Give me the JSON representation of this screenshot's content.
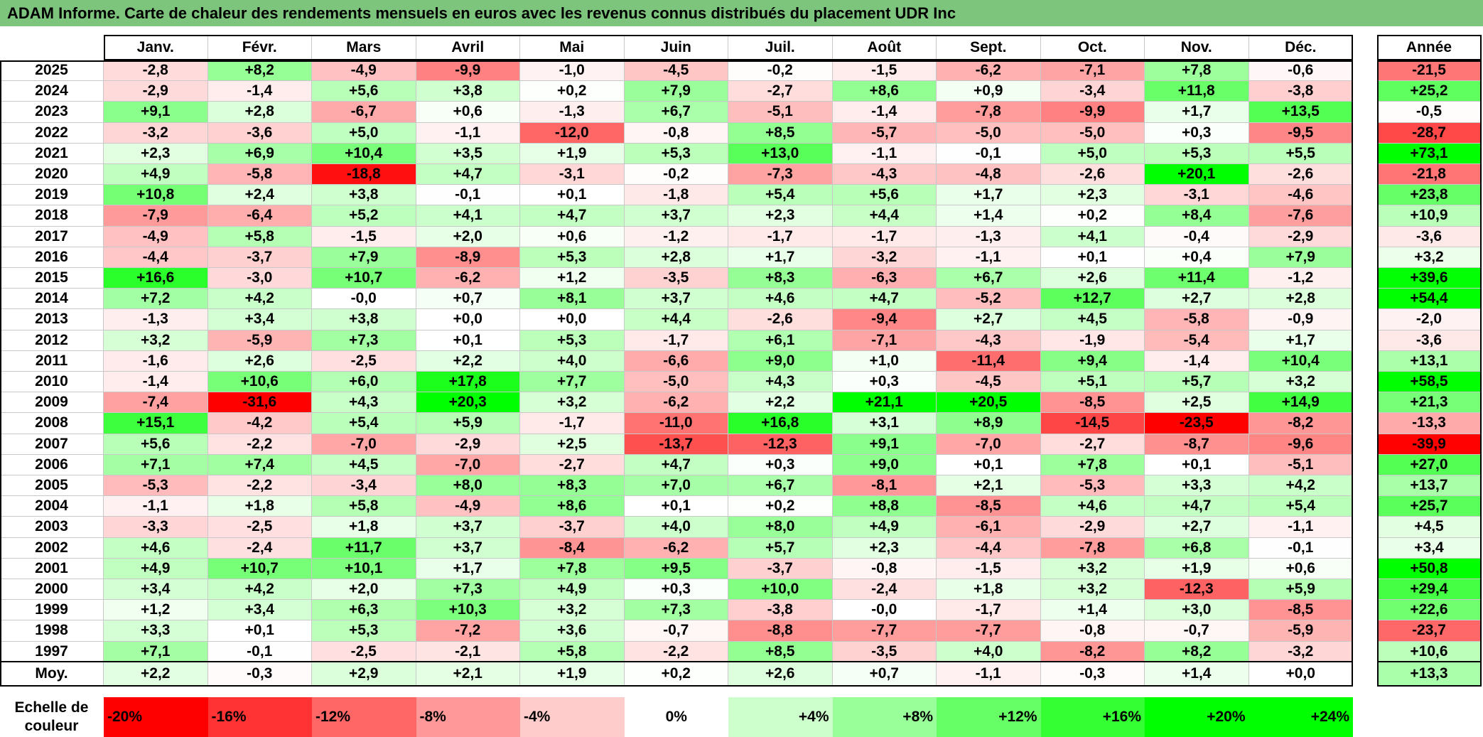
{
  "title": "ADAM Informe. Carte de chaleur des rendements mensuels en euros avec les revenus connus distribués du placement UDR Inc",
  "chart_data": {
    "type": "heatmap",
    "columns": [
      "Janv.",
      "Févr.",
      "Mars",
      "Avril",
      "Mai",
      "Juin",
      "Juil.",
      "Août",
      "Sept.",
      "Oct.",
      "Nov.",
      "Déc."
    ],
    "annual_header": "Année",
    "rows": [
      {
        "year": "2025",
        "values": [
          "-2,8",
          "+8,2",
          "-4,9",
          "-9,9",
          "-1,0",
          "-4,5",
          "-0,2",
          "-1,5",
          "-6,2",
          "-7,1",
          "+7,8",
          "-0,6"
        ],
        "annual": "-21,5"
      },
      {
        "year": "2024",
        "values": [
          "-2,9",
          "-1,4",
          "+5,6",
          "+3,8",
          "+0,2",
          "+7,9",
          "-2,7",
          "+8,6",
          "+0,9",
          "-3,4",
          "+11,8",
          "-3,8"
        ],
        "annual": "+25,2"
      },
      {
        "year": "2023",
        "values": [
          "+9,1",
          "+2,8",
          "-6,7",
          "+0,6",
          "-1,3",
          "+6,7",
          "-5,1",
          "-1,4",
          "-7,8",
          "-9,9",
          "+1,7",
          "+13,5"
        ],
        "annual": "-0,5"
      },
      {
        "year": "2022",
        "values": [
          "-3,2",
          "-3,6",
          "+5,0",
          "-1,1",
          "-12,0",
          "-0,8",
          "+8,5",
          "-5,7",
          "-5,0",
          "-5,0",
          "+0,3",
          "-9,5"
        ],
        "annual": "-28,7"
      },
      {
        "year": "2021",
        "values": [
          "+2,3",
          "+6,9",
          "+10,4",
          "+3,5",
          "+1,9",
          "+5,3",
          "+13,0",
          "-1,1",
          "-0,1",
          "+5,0",
          "+5,3",
          "+5,5"
        ],
        "annual": "+73,1"
      },
      {
        "year": "2020",
        "values": [
          "+4,9",
          "-5,8",
          "-18,8",
          "+4,7",
          "-3,1",
          "-0,2",
          "-7,3",
          "-4,3",
          "-4,8",
          "-2,6",
          "+20,1",
          "-2,6"
        ],
        "annual": "-21,8"
      },
      {
        "year": "2019",
        "values": [
          "+10,8",
          "+2,4",
          "+3,8",
          "-0,1",
          "+0,1",
          "-1,8",
          "+5,4",
          "+5,6",
          "+1,7",
          "+2,3",
          "-3,1",
          "-4,6"
        ],
        "annual": "+23,8"
      },
      {
        "year": "2018",
        "values": [
          "-7,9",
          "-6,4",
          "+5,2",
          "+4,1",
          "+4,7",
          "+3,7",
          "+2,3",
          "+4,4",
          "+1,4",
          "+0,2",
          "+8,4",
          "-7,6"
        ],
        "annual": "+10,9"
      },
      {
        "year": "2017",
        "values": [
          "-4,9",
          "+5,8",
          "-1,5",
          "+2,0",
          "+0,6",
          "-1,2",
          "-1,7",
          "-1,7",
          "-1,3",
          "+4,1",
          "-0,4",
          "-2,9"
        ],
        "annual": "-3,6"
      },
      {
        "year": "2016",
        "values": [
          "-4,4",
          "-3,7",
          "+7,9",
          "-8,9",
          "+5,3",
          "+2,8",
          "+1,7",
          "-3,2",
          "-1,1",
          "+0,1",
          "+0,4",
          "+7,9"
        ],
        "annual": "+3,2"
      },
      {
        "year": "2015",
        "values": [
          "+16,6",
          "-3,0",
          "+10,7",
          "-6,2",
          "+1,2",
          "-3,5",
          "+8,3",
          "-6,3",
          "+6,7",
          "+2,6",
          "+11,4",
          "-1,2"
        ],
        "annual": "+39,6"
      },
      {
        "year": "2014",
        "values": [
          "+7,2",
          "+4,2",
          "-0,0",
          "+0,7",
          "+8,1",
          "+3,7",
          "+4,6",
          "+4,7",
          "-5,2",
          "+12,7",
          "+2,7",
          "+2,8"
        ],
        "annual": "+54,4"
      },
      {
        "year": "2013",
        "values": [
          "-1,3",
          "+3,4",
          "+3,8",
          "+0,0",
          "+0,0",
          "+4,4",
          "-2,6",
          "-9,4",
          "+2,7",
          "+4,5",
          "-5,8",
          "-0,9"
        ],
        "annual": "-2,0"
      },
      {
        "year": "2012",
        "values": [
          "+3,2",
          "-5,9",
          "+7,3",
          "+0,1",
          "+5,3",
          "-1,7",
          "+6,1",
          "-7,1",
          "-4,3",
          "-1,9",
          "-5,4",
          "+1,7"
        ],
        "annual": "-3,6"
      },
      {
        "year": "2011",
        "values": [
          "-1,6",
          "+2,6",
          "-2,5",
          "+2,2",
          "+4,0",
          "-6,6",
          "+9,0",
          "+1,0",
          "-11,4",
          "+9,4",
          "-1,4",
          "+10,4"
        ],
        "annual": "+13,1"
      },
      {
        "year": "2010",
        "values": [
          "-1,4",
          "+10,6",
          "+6,0",
          "+17,8",
          "+7,7",
          "-5,0",
          "+4,3",
          "+0,3",
          "-4,5",
          "+5,1",
          "+5,7",
          "+3,2"
        ],
        "annual": "+58,5"
      },
      {
        "year": "2009",
        "values": [
          "-7,4",
          "-31,6",
          "+4,3",
          "+20,3",
          "+3,2",
          "-6,2",
          "+2,2",
          "+21,1",
          "+20,5",
          "-8,5",
          "+2,5",
          "+14,9"
        ],
        "annual": "+21,3"
      },
      {
        "year": "2008",
        "values": [
          "+15,1",
          "-4,2",
          "+5,4",
          "+5,9",
          "-1,7",
          "-11,0",
          "+16,8",
          "+3,1",
          "+8,9",
          "-14,5",
          "-23,5",
          "-8,2"
        ],
        "annual": "-13,3"
      },
      {
        "year": "2007",
        "values": [
          "+5,6",
          "-2,2",
          "-7,0",
          "-2,9",
          "+2,5",
          "-13,7",
          "-12,3",
          "+9,1",
          "-7,0",
          "-2,7",
          "-8,7",
          "-9,6"
        ],
        "annual": "-39,9"
      },
      {
        "year": "2006",
        "values": [
          "+7,1",
          "+7,4",
          "+4,5",
          "-7,0",
          "-2,7",
          "+4,7",
          "+0,3",
          "+9,0",
          "+0,1",
          "+7,8",
          "+0,1",
          "-5,1"
        ],
        "annual": "+27,0"
      },
      {
        "year": "2005",
        "values": [
          "-5,3",
          "-2,2",
          "-3,4",
          "+8,0",
          "+8,3",
          "+7,0",
          "+6,7",
          "-8,1",
          "+2,1",
          "-5,3",
          "+3,3",
          "+4,2"
        ],
        "annual": "+13,7"
      },
      {
        "year": "2004",
        "values": [
          "-1,1",
          "+1,8",
          "+5,8",
          "-4,9",
          "+8,6",
          "+0,1",
          "+0,2",
          "+8,8",
          "-8,5",
          "+4,6",
          "+4,7",
          "+5,4"
        ],
        "annual": "+25,7"
      },
      {
        "year": "2003",
        "values": [
          "-3,3",
          "-2,5",
          "+1,8",
          "+3,7",
          "-3,7",
          "+4,0",
          "+8,0",
          "+4,9",
          "-6,1",
          "-2,9",
          "+2,7",
          "-1,1"
        ],
        "annual": "+4,5"
      },
      {
        "year": "2002",
        "values": [
          "+4,6",
          "-2,4",
          "+11,7",
          "+3,7",
          "-8,4",
          "-6,2",
          "+5,7",
          "+2,3",
          "-4,4",
          "-7,8",
          "+6,8",
          "-0,1"
        ],
        "annual": "+3,4"
      },
      {
        "year": "2001",
        "values": [
          "+4,9",
          "+10,7",
          "+10,1",
          "+1,7",
          "+7,8",
          "+9,5",
          "-3,7",
          "-0,8",
          "-1,5",
          "+3,2",
          "+1,9",
          "+0,6"
        ],
        "annual": "+50,8"
      },
      {
        "year": "2000",
        "values": [
          "+3,4",
          "+4,2",
          "+2,0",
          "+7,3",
          "+4,9",
          "+0,3",
          "+10,0",
          "-2,4",
          "+1,8",
          "+3,2",
          "-12,3",
          "+5,9"
        ],
        "annual": "+29,4"
      },
      {
        "year": "1999",
        "values": [
          "+1,2",
          "+3,4",
          "+6,3",
          "+10,3",
          "+3,2",
          "+7,3",
          "-3,8",
          "-0,0",
          "-1,7",
          "+1,4",
          "+3,0",
          "-8,5"
        ],
        "annual": "+22,6"
      },
      {
        "year": "1998",
        "values": [
          "+3,3",
          "+0,1",
          "+5,3",
          "-7,2",
          "+3,6",
          "-0,7",
          "-8,8",
          "-7,7",
          "-7,7",
          "-0,8",
          "-0,7",
          "-5,9"
        ],
        "annual": "-23,7"
      },
      {
        "year": "1997",
        "values": [
          "+7,1",
          "-0,1",
          "-2,5",
          "-2,1",
          "+5,8",
          "-2,2",
          "+8,5",
          "-3,5",
          "+4,0",
          "-8,2",
          "+8,2",
          "-3,2"
        ],
        "annual": "+10,6"
      }
    ],
    "average": {
      "label": "Moy.",
      "values": [
        "+2,2",
        "-0,3",
        "+2,9",
        "+2,1",
        "+1,9",
        "+0,2",
        "+2,6",
        "+0,7",
        "-1,1",
        "-0,3",
        "+1,4",
        "+0,0"
      ],
      "annual": "+13,3"
    },
    "legend": {
      "label": "Echelle de couleur",
      "stops": [
        {
          "label": "-20%",
          "value": -20
        },
        {
          "label": "-16%",
          "value": -16
        },
        {
          "label": "-12%",
          "value": -12
        },
        {
          "label": "-8%",
          "value": -8
        },
        {
          "label": "-4%",
          "value": -4
        },
        {
          "label": "0%",
          "value": 0
        },
        {
          "label": "+4%",
          "value": 4
        },
        {
          "label": "+8%",
          "value": 8
        },
        {
          "label": "+12%",
          "value": 12
        },
        {
          "label": "+16%",
          "value": 16
        },
        {
          "label": "+20%",
          "value": 20
        },
        {
          "label": "+24%",
          "value": 24
        }
      ]
    },
    "colors": {
      "negative": "#ff0000",
      "neutral": "#ffffff",
      "positive": "#00ff00",
      "title_bg": "#7dc47c"
    }
  }
}
